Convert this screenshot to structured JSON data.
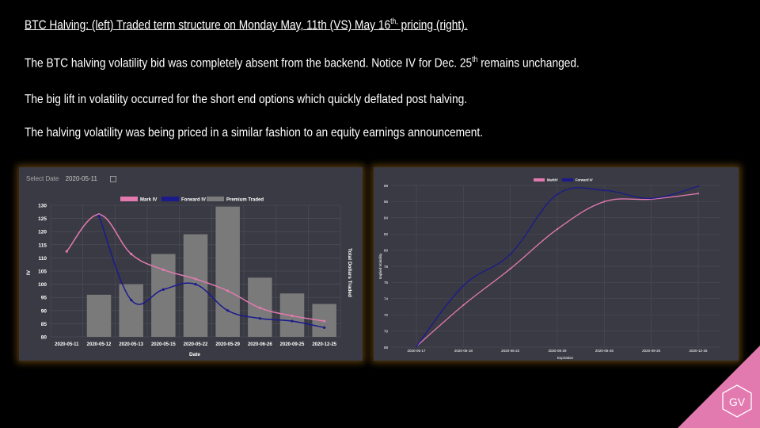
{
  "slide": {
    "heading_a": "BTC Halving: (left) Traded term structure on Monday May, 11th (VS) May 16",
    "heading_sup": "th,",
    "heading_b": " pricing (right).",
    "line2_a": "The BTC halving volatility bid was completely absent from the backend. Notice IV for Dec. 25",
    "line2_sup": "th",
    "line2_b": " remains unchanged.",
    "line3": "The big lift in volatility occurred for the short end options which quickly deflated post halving.",
    "line4": "The halving volatility was being priced in a similar fashion to an equity earnings announcement."
  },
  "left_panel": {
    "select_label": "Select Date",
    "select_value": "2020-05-11"
  },
  "logo_text": "GV",
  "colors": {
    "mark_iv": "#e27ab0",
    "forward_iv": "#1a1a8c",
    "premium": "#7a7a7a",
    "panel_bg": "#3a3a44",
    "logo": "#e27ab0"
  },
  "chart_data": [
    {
      "type": "bar+line",
      "categories": [
        "2020-05-11",
        "2020-05-12",
        "2020-05-13",
        "2020-05-15",
        "2020-05-22",
        "2020-05-29",
        "2020-06-26",
        "2020-09-25",
        "2020-12-25"
      ],
      "series": [
        {
          "name": "Mark IV",
          "type": "line",
          "values": [
            112.5,
            126.5,
            111.5,
            105.5,
            102,
            97.5,
            91,
            88,
            86
          ]
        },
        {
          "name": "Forward IV",
          "type": "line",
          "values": [
            null,
            126,
            94,
            98,
            100,
            90,
            87,
            86,
            83.5
          ]
        },
        {
          "name": "Premium Traded",
          "type": "bar",
          "values": [
            null,
            96,
            100,
            111.5,
            119,
            129.5,
            102.5,
            96.5,
            92.5
          ]
        }
      ],
      "xlabel": "Date",
      "ylabel": "IV",
      "y2label": "Total Dollars Traded",
      "ylim": [
        80,
        130
      ],
      "yticks": [
        80,
        85,
        90,
        95,
        100,
        105,
        110,
        115,
        120,
        125,
        130
      ],
      "legend": "top-center",
      "grid": true
    },
    {
      "type": "line",
      "categories": [
        "2020-05-17",
        "2020-05-18",
        "2020-05-22",
        "2020-05-29",
        "2020-06-26",
        "2020-09-25",
        "2020-12-25"
      ],
      "series": [
        {
          "name": "MarkIV",
          "values": [
            68.1,
            73.2,
            77.7,
            82.6,
            86,
            86.3,
            87
          ]
        },
        {
          "name": "Forward IV",
          "values": [
            68.1,
            75.6,
            79.5,
            86.9,
            87.4,
            86.4,
            87.9
          ]
        }
      ],
      "xlabel": "Expiration",
      "ylabel": "Implied Volatility",
      "ylim": [
        68,
        88
      ],
      "yticks": [
        68,
        70,
        72,
        74,
        76,
        78,
        80,
        82,
        84,
        86,
        88
      ],
      "legend": "top-center",
      "grid": true
    }
  ]
}
